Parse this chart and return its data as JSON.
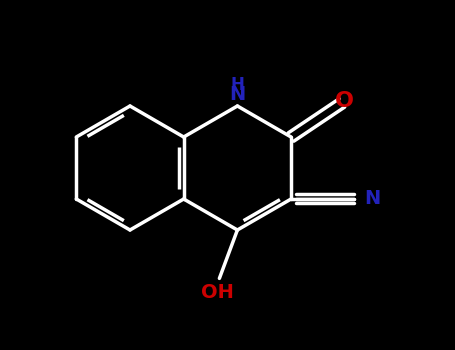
{
  "bg": "#000000",
  "bond_color": "#ffffff",
  "lw": 2.5,
  "NH_color": "#2222bb",
  "O_color": "#cc0000",
  "N_nitrile_color": "#2222bb",
  "OH_color": "#cc0000",
  "figsize": [
    4.55,
    3.5
  ],
  "dpi": 100,
  "xlim": [
    0.0,
    4.55
  ],
  "ylim": [
    0.0,
    3.5
  ],
  "bl": 0.62,
  "lcx": 1.3,
  "lcy": 1.82
}
